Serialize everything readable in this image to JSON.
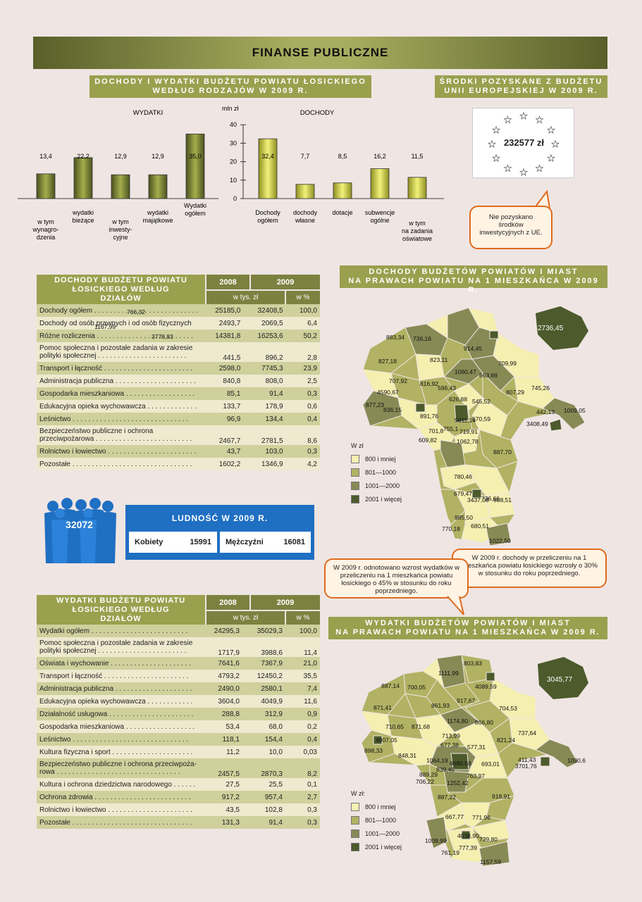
{
  "title": "FINANSE PUBLICZNE",
  "chart_section": {
    "header_line1": "DOCHODY I WYDATKI BUDŻETU POWIATU ŁOSICKIEGO",
    "header_line2": "WEDŁUG RODZAJÓW W 2009 R.",
    "unit": "mln zł",
    "wydatki_label": "WYDATKI",
    "dochody_label": "DOCHODY"
  },
  "chart_data": {
    "type": "bar",
    "ylabel": "mln zł",
    "ylim": [
      0,
      40
    ],
    "yticks": [
      "0",
      "10",
      "20",
      "30",
      "40"
    ],
    "groups": [
      {
        "name": "WYDATKI",
        "categories": [
          "w tym\nwynagro-\ndzenia",
          "wydatki\nbieżące",
          "w tym\ninwesty-\ncyjne",
          "wydatki\nmajątkowe",
          "Wydatki\nogółem"
        ],
        "values": [
          13.4,
          22.2,
          12.9,
          12.9,
          35.0
        ],
        "value_labels": [
          "13,4",
          "22,2",
          "12,9",
          "12,9",
          "35,0"
        ],
        "color": "#6f7a2a"
      },
      {
        "name": "DOCHODY",
        "categories": [
          "Dochody\nogółem",
          "dochody\nwłasne",
          "dotacje",
          "subwencje\nogólne",
          "w tym\nna zadania\noświatowe"
        ],
        "values": [
          32.4,
          7.7,
          8.5,
          16.2,
          11.5
        ],
        "value_labels": [
          "32,4",
          "7,7",
          "8,5",
          "16,2",
          "11,5"
        ],
        "color": "#d7d84a"
      }
    ]
  },
  "eu": {
    "header_line1": "ŚRODKI POZYSKANE Z BUDŻETU",
    "header_line2": "UNII EUROPEJSKIEJ W 2009 R.",
    "amount": "232577 zł",
    "note": "Nie pozyskano środków inwestycyjnych z UE."
  },
  "table1": {
    "header": "DOCHODY BUDŻETU POWIATU ŁOSICKIEGO WEDŁUG DZIAŁÓW",
    "col_2008": "2008",
    "col_2009": "2009",
    "sub_unit": "w tys. zł",
    "sub_pct": "w %",
    "rows": [
      {
        "label": "Dochody ogółem . . . . . . . . . . . . . . . . . . . . . . . . . . .",
        "v2008": "25185,0",
        "v2009": "32408,5",
        "pct": "100,0"
      },
      {
        "label": "Dochody od osób prawnych i od osób fizycznych",
        "v2008": "2493,7",
        "v2009": "2069,5",
        "pct": "6,4"
      },
      {
        "label": "Różne rozliczenia . . . . . . . . . . . . . . . . . . . . . . . . .",
        "v2008": "14381,8",
        "v2009": "16253,6",
        "pct": "50,2"
      },
      {
        "label": "Pomoc społeczna i pozostałe zadania w zakresie\npolityki społecznej . . . . . . . . . . . . . . . . . . . . . . .",
        "v2008": "441,5",
        "v2009": "896,2",
        "pct": "2,8",
        "tall": true
      },
      {
        "label": "Transport i łączność . . . . . . . . . . . . . . . . . . . . . . .",
        "v2008": "2598,0",
        "v2009": "7745,3",
        "pct": "23,9"
      },
      {
        "label": "Administracja publiczna . . . . . . . . . . . . . . . . . . . . .",
        "v2008": "840,8",
        "v2009": "808,0",
        "pct": "2,5"
      },
      {
        "label": "Gospodarka mieszkaniowa . . . . . . . . . . . . . . . . . .",
        "v2008": "85,1",
        "v2009": "91,4",
        "pct": "0,3"
      },
      {
        "label": "Edukacyjna opieka wychowawcza . . . . . . . . . . . . .",
        "v2008": "133,7",
        "v2009": "178,9",
        "pct": "0,6"
      },
      {
        "label": "Leśnictwo . . . . . . . . . . . . . . . . . . . . . . . . . . . . . .",
        "v2008": "96,9",
        "v2009": "134,4",
        "pct": "0,4"
      },
      {
        "label": "Bezpieczeństwo publiczne i ochrona\nprzeciwpożarowa . . . . . . . . . . . . . . . . . . . . . . . . .",
        "v2008": "2467,7",
        "v2009": "2781,5",
        "pct": "8,6",
        "tall": true
      },
      {
        "label": "Rolnictwo i łowiectwo . . . . . . . . . . . . . . . . . . . . . . .",
        "v2008": "43,7",
        "v2009": "103,0",
        "pct": "0,3"
      },
      {
        "label": "Pozostałe . . . . . . . . . . . . . . . . . . . . . . . . . . . . . . .",
        "v2008": "1602,2",
        "v2009": "1346,9",
        "pct": "4,2"
      }
    ]
  },
  "population": {
    "total": "32072",
    "header": "LUDNOŚĆ W 2009 R.",
    "women_label": "Kobiety",
    "women_value": "15991",
    "men_label": "Mężczyźni",
    "men_value": "16081"
  },
  "callouts": {
    "expenses": "W 2009 r. odnotowano wzrost wydatków w przeliczeniu na 1 mieszkańca powiatu łosickiego o 45% w stosunku do roku poprzedniego.",
    "income": "W 2009 r. dochody w przeliczeniu na 1 mieszkańca powiatu łosickiego wzrosły o 30% w stosunku do roku poprzedniego."
  },
  "map1": {
    "header_line1": "DOCHODY BUDŻETÓW POWIATÓW I MIAST",
    "header_line2": "NA PRAWACH POWIATU NA 1 MIESZKAŃCA W 2009 R.",
    "legend_title": "W zł",
    "legend": [
      "800 i mniej",
      "801—1000",
      "1001—2000",
      "2001 i więcej"
    ],
    "colors": [
      "#f5efb0",
      "#b1b263",
      "#878a55",
      "#4c5a2c"
    ],
    "labels": [
      "766,32",
      "1167,99",
      "3778,83",
      "883,34",
      "736,16",
      "914,45",
      "827,18",
      "823,11",
      "709,99",
      "1060,47",
      "863,69",
      "707,92",
      "816,92",
      "745,26",
      "4590,67",
      "596,43",
      "807,29",
      "626,88",
      "545,52",
      "877,23",
      "836,15",
      "442,13",
      "1009,05",
      "891,76",
      "670,59",
      "3408,49",
      "5911,14",
      "755,1",
      "701,8",
      "719,91",
      "609,82",
      "1062,78",
      "887,70",
      "780,46",
      "679,47",
      "736,66",
      "3437,08",
      "688,51",
      "985,50",
      "680,51",
      "770,18",
      "1022,50",
      "2736,45"
    ]
  },
  "table2": {
    "header": "WYDATKI BUDŻETU POWIATU ŁOSICKIEGO WEDŁUG DZIAŁÓW",
    "col_2008": "2008",
    "col_2009": "2009",
    "sub_unit": "w tys. zł",
    "sub_pct": "w %",
    "rows": [
      {
        "label": "Wydatki ogółem . . . . . . . . . . . . . . . . . . . . . . . . .",
        "v2008": "24295,3",
        "v2009": "35029,3",
        "pct": "100,0"
      },
      {
        "label": "Pomoc społeczna i pozostałe zadania w zakresie\npolityki społecznej . . . . . . . . . . . . . . . . . . . . . . .",
        "v2008": "1717,9",
        "v2009": "3988,6",
        "pct": "11,4",
        "tall": true
      },
      {
        "label": "Oświata i wychowanie . . . . . . . . . . . . . . . . . . . . .",
        "v2008": "7641,6",
        "v2009": "7367,9",
        "pct": "21,0"
      },
      {
        "label": "Transport i łączność . . . . . . . . . . . . . . . . . . . . . .",
        "v2008": "4793,2",
        "v2009": "12450,2",
        "pct": "35,5"
      },
      {
        "label": "Administracja publiczna . . . . . . . . . . . . . . . . . . . .",
        "v2008": "2490,0",
        "v2009": "2580,1",
        "pct": "7,4"
      },
      {
        "label": "Edukacyjna opieka wychowawcza . . . . . . . . . . . .",
        "v2008": "3604,0",
        "v2009": "4049,9",
        "pct": "11,6"
      },
      {
        "label": "Działalność usługowa . . . . . . . . . . . . . . . . . . . . . .",
        "v2008": "288,8",
        "v2009": "312,9",
        "pct": "0,9"
      },
      {
        "label": "Gospodarka mieszkaniowa . . . . . . . . . . . . . . . . . .",
        "v2008": "53,4",
        "v2009": "68,0",
        "pct": "0,2"
      },
      {
        "label": "Leśnictwo . . . . . . . . . . . . . . . . . . . . . . . . . . . . . .",
        "v2008": "118,1",
        "v2009": "154,4",
        "pct": "0,4"
      },
      {
        "label": "Kultura fizyczna i sport . . . . . . . . . . . . . . . . . . . . .",
        "v2008": "11,2",
        "v2009": "10,0",
        "pct": "0,03"
      },
      {
        "label": "Bezpieczeństwo publiczne i ochrona przeciwpoża-\nrowa . . . . . . . . . . . . . . . . . . . . . . . . . . . . . . . .",
        "v2008": "2457,5",
        "v2009": "2870,3",
        "pct": "8,2",
        "tall": true
      },
      {
        "label": "Kultura i ochrona dziedzictwa narodowego . . . . . .",
        "v2008": "27,5",
        "v2009": "25,5",
        "pct": "0,1"
      },
      {
        "label": "Ochrona zdrowia . . . . . . . . . . . . . . . . . . . . . . . . .",
        "v2008": "917,2",
        "v2009": "957,4",
        "pct": "2,7"
      },
      {
        "label": "Rolnictwo i łowiectwo . . . . . . . . . . . . . . . . . . . . . .",
        "v2008": "43,5",
        "v2009": "102,8",
        "pct": "0,3"
      },
      {
        "label": "Pozostałe . . . . . . . . . . . . . . . . . . . . . . . . . . . . . . .",
        "v2008": "131,3",
        "v2009": "91,4",
        "pct": "0,3"
      }
    ]
  },
  "map2": {
    "header_line1": "WYDATKI BUDŻETÓW POWIATÓW I MIAST",
    "header_line2": "NA PRAWACH POWIATU NA 1 MIESZKAŃCA W 2009 R.",
    "legend_title": "W zł:",
    "legend": [
      "800 i mniej",
      "801—1000",
      "1001—2000",
      "2001 i więcej"
    ],
    "labels": [
      "803,83",
      "1111,99",
      "4089,59",
      "887,14",
      "700,05",
      "917,67",
      "871,41",
      "861,93",
      "704,53",
      "1174,80",
      "866,80",
      "710,65",
      "871,68",
      "737,64",
      "4907,05",
      "713,99",
      "821,24",
      "677,38",
      "577,31",
      "898,33",
      "848,31",
      "411,43",
      "1090,6",
      "1064,19",
      "6680,58",
      "693,01",
      "3701,76",
      "839,45",
      "889,29",
      "763,97",
      "706,22",
      "1252,42",
      "887,22",
      "918,91",
      "667,77",
      "771,96",
      "1009,99",
      "4038,90",
      "739,80",
      "777,39",
      "761,19",
      "1157,59",
      "3045,77"
    ]
  }
}
